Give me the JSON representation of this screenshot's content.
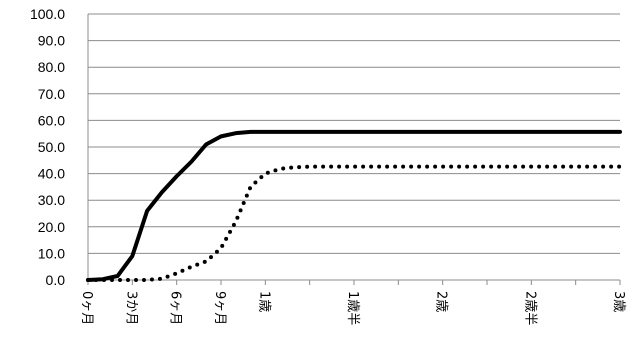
{
  "chart_data": {
    "type": "line",
    "title": "",
    "xlabel": "",
    "ylabel": "",
    "ylim": [
      0,
      100
    ],
    "y_tick_labels": [
      "0.0",
      "10.0",
      "20.0",
      "30.0",
      "40.0",
      "50.0",
      "60.0",
      "70.0",
      "80.0",
      "90.0",
      "100.0"
    ],
    "grid": "horizontal",
    "legend": "none",
    "x_tick_labels": [
      {
        "label": "0ヶ月",
        "month": 0
      },
      {
        "label": "3か月",
        "month": 3
      },
      {
        "label": "6ヶ月",
        "month": 6
      },
      {
        "label": "9ヶ月",
        "month": 9
      },
      {
        "label": "1歳",
        "month": 12
      },
      {
        "label": "1歳半",
        "month": 18
      },
      {
        "label": "2歳",
        "month": 24
      },
      {
        "label": "2歳半",
        "month": 30
      },
      {
        "label": "3歳",
        "month": 36
      }
    ],
    "series": [
      {
        "style": "solid",
        "color": "#000000",
        "x": [
          0,
          1,
          2,
          3,
          4,
          5,
          6,
          7,
          8,
          9,
          10,
          11,
          12,
          13,
          14,
          15,
          16,
          17,
          18,
          19,
          20,
          21,
          22,
          23,
          24,
          25,
          26,
          27,
          28,
          29,
          30,
          31,
          32,
          33,
          34,
          35,
          36
        ],
        "values": [
          0.0,
          0.3,
          1.5,
          9.0,
          26.0,
          33.0,
          39.0,
          44.5,
          51.0,
          54.0,
          55.2,
          55.7,
          55.7,
          55.7,
          55.7,
          55.7,
          55.7,
          55.7,
          55.7,
          55.7,
          55.7,
          55.7,
          55.7,
          55.7,
          55.7,
          55.7,
          55.7,
          55.7,
          55.7,
          55.7,
          55.7,
          55.7,
          55.7,
          55.7,
          55.7,
          55.7,
          55.7
        ]
      },
      {
        "style": "dotted",
        "color": "#000000",
        "x": [
          0,
          1,
          2,
          3,
          4,
          5,
          6,
          7,
          8,
          9,
          10,
          11,
          12,
          13,
          14,
          15,
          16,
          17,
          18,
          19,
          20,
          21,
          22,
          23,
          24,
          25,
          26,
          27,
          28,
          29,
          30,
          31,
          32,
          33,
          34,
          35,
          36
        ],
        "values": [
          0.0,
          0.0,
          0.0,
          0.0,
          0.0,
          0.5,
          2.5,
          5.0,
          7.0,
          12.0,
          22.0,
          35.0,
          40.0,
          41.8,
          42.4,
          42.6,
          42.6,
          42.6,
          42.6,
          42.6,
          42.6,
          42.6,
          42.6,
          42.6,
          42.6,
          42.6,
          42.6,
          42.6,
          42.6,
          42.6,
          42.6,
          42.6,
          42.6,
          42.6,
          42.6,
          42.6,
          42.6
        ]
      }
    ]
  }
}
